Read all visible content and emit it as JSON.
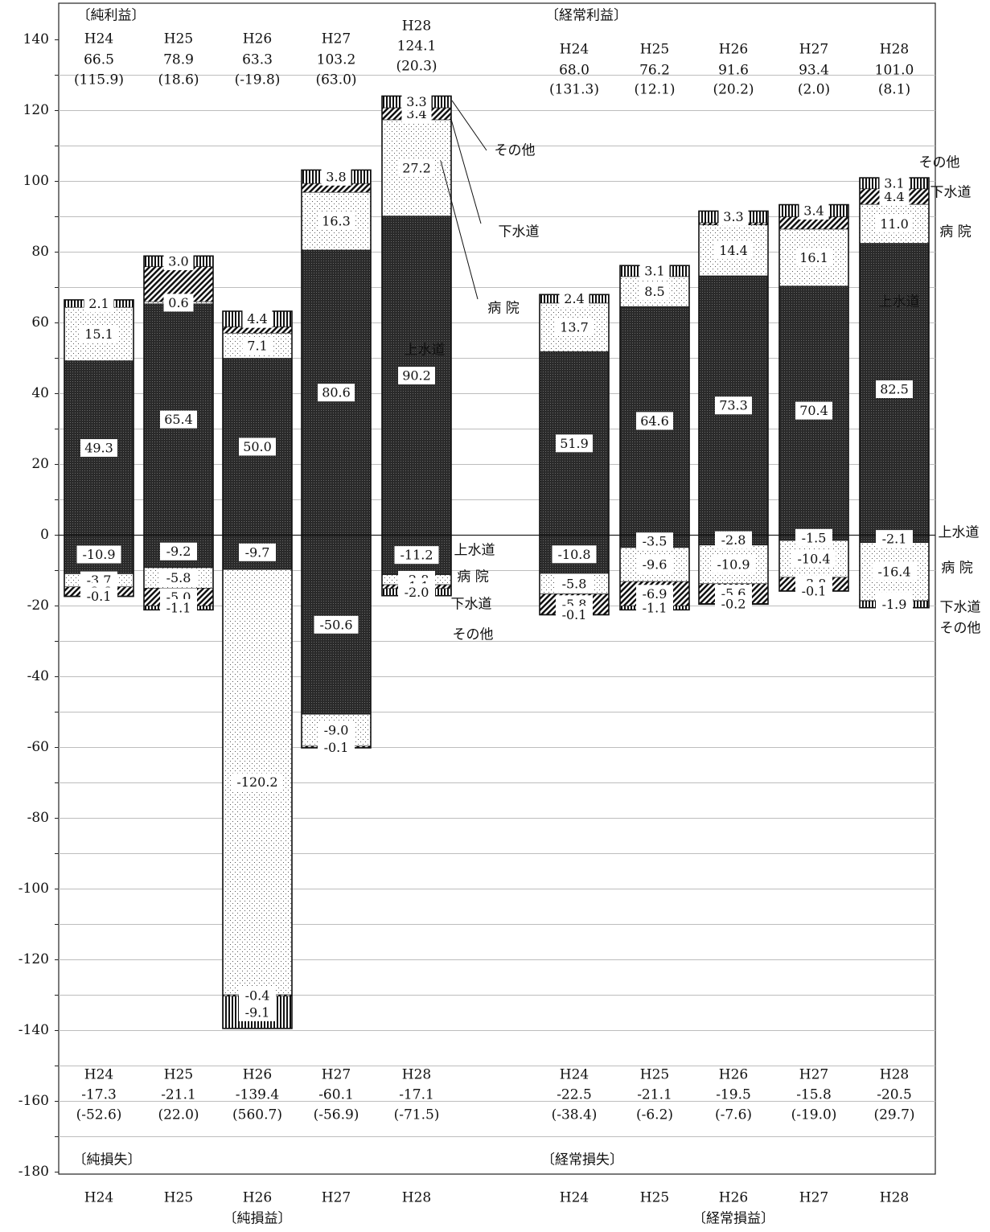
{
  "chart_data": {
    "type": "bar",
    "stacked": true,
    "ylim": [
      -180,
      140
    ],
    "yticks": [
      "140",
      "120",
      "100",
      "80",
      "60",
      "40",
      "20",
      "0",
      "-20",
      "-40",
      "-60",
      "-80",
      "-100",
      "-120",
      "-140",
      "-160",
      "-180"
    ],
    "grid": "horizontal",
    "xlabel_left": "〔純損益〕",
    "xlabel_right": "〔経常損益〕",
    "categories": [
      "H24",
      "H25",
      "H26",
      "H27",
      "H28"
    ],
    "component_labels": {
      "water": "上水道",
      "hospital": "病 院",
      "sewer": "下水道",
      "other": "その他"
    },
    "panels": [
      {
        "key": "net",
        "profit_heading": "〔純利益〕",
        "loss_heading": "〔純損失〕",
        "profit": {
          "totals": [
            "66.5",
            "78.9",
            "63.3",
            "103.2",
            "124.1"
          ],
          "changes": [
            "(115.9)",
            "(18.6)",
            "(-19.8)",
            "(63.0)",
            "(20.3)"
          ],
          "series": [
            {
              "name": "上水道",
              "values": [
                49.3,
                65.4,
                50.0,
                80.6,
                90.2
              ]
            },
            {
              "name": "病院",
              "values": [
                15.1,
                0.6,
                7.1,
                16.3,
                27.2
              ]
            },
            {
              "name": "下水道",
              "values": [
                0.0,
                9.9,
                1.8,
                2.5,
                3.4
              ]
            },
            {
              "name": "その他",
              "values": [
                2.1,
                3.0,
                4.4,
                3.8,
                3.3
              ]
            }
          ]
        },
        "loss": {
          "totals": [
            "-17.3",
            "-21.1",
            "-139.4",
            "-60.1",
            "-17.1"
          ],
          "changes": [
            "(-52.6)",
            "(22.0)",
            "(560.7)",
            "(-56.9)",
            "(-71.5)"
          ],
          "series": [
            {
              "name": "上水道",
              "values": [
                -10.9,
                -9.2,
                -9.7,
                -50.6,
                -11.2
              ]
            },
            {
              "name": "病院",
              "values": [
                -3.7,
                -5.8,
                -120.2,
                -9.0,
                -2.8
              ]
            },
            {
              "name": "下水道",
              "values": [
                -2.6,
                -5.0,
                -0.4,
                -0.4,
                -1.1
              ]
            },
            {
              "name": "その他",
              "values": [
                -0.1,
                -1.1,
                -9.1,
                -0.1,
                -2.0
              ]
            }
          ]
        }
      },
      {
        "key": "ordinary",
        "profit_heading": "〔経常利益〕",
        "loss_heading": "〔経常損失〕",
        "profit": {
          "totals": [
            "68.0",
            "76.2",
            "91.6",
            "93.4",
            "101.0"
          ],
          "changes": [
            "(131.3)",
            "(12.1)",
            "(20.2)",
            "(2.0)",
            "(8.1)"
          ],
          "series": [
            {
              "name": "上水道",
              "values": [
                51.9,
                64.6,
                73.3,
                70.4,
                82.5
              ]
            },
            {
              "name": "病院",
              "values": [
                13.7,
                8.5,
                14.4,
                16.1,
                11.0
              ]
            },
            {
              "name": "下水道",
              "values": [
                0.0,
                0.0,
                0.6,
                3.5,
                4.4
              ]
            },
            {
              "name": "その他",
              "values": [
                2.4,
                3.1,
                3.3,
                3.4,
                3.1
              ]
            }
          ]
        },
        "loss": {
          "totals": [
            "-22.5",
            "-21.1",
            "-19.5",
            "-15.8",
            "-20.5"
          ],
          "changes": [
            "(-38.4)",
            "(-6.2)",
            "(-7.6)",
            "(-19.0)",
            "(29.7)"
          ],
          "series": [
            {
              "name": "上水道",
              "values": [
                -10.8,
                -3.5,
                -2.8,
                -1.5,
                -2.1
              ]
            },
            {
              "name": "病院",
              "values": [
                -5.8,
                -9.6,
                -10.9,
                -10.4,
                -16.4
              ]
            },
            {
              "name": "下水道",
              "values": [
                -5.8,
                -6.9,
                -5.6,
                -3.8,
                -0.1
              ]
            },
            {
              "name": "その他",
              "values": [
                -0.1,
                -1.1,
                -0.2,
                -0.1,
                -1.9
              ]
            }
          ]
        }
      }
    ],
    "data_labels": {
      "net": {
        "profit": [
          [
            "49.3",
            "15.1",
            "",
            "2.1"
          ],
          [
            "65.4",
            "0.6",
            "",
            "3.0"
          ],
          [
            "50.0",
            "7.1",
            "",
            "4.4"
          ],
          [
            "80.6",
            "16.3",
            "",
            "3.8"
          ],
          [
            "90.2",
            "27.2",
            "3.4",
            "3.3"
          ]
        ],
        "loss": [
          [
            "-10.9",
            "-3.7",
            "-2.6",
            "-0.1"
          ],
          [
            "-9.2",
            "-5.8",
            "-5.0",
            "-1.1"
          ],
          [
            "-9.7",
            "-120.2",
            "-0.4",
            "-9.1"
          ],
          [
            "-50.6",
            "-9.0",
            "-0.4",
            "-0.1"
          ],
          [
            "-11.2",
            "-2.8",
            "-1.1",
            "-2.0"
          ]
        ]
      },
      "ordinary": {
        "profit": [
          [
            "51.9",
            "13.7",
            "",
            "2.4"
          ],
          [
            "64.6",
            "8.5",
            "",
            "3.1"
          ],
          [
            "73.3",
            "14.4",
            "",
            "3.3"
          ],
          [
            "70.4",
            "16.1",
            "",
            "3.4"
          ],
          [
            "82.5",
            "11.0",
            "4.4",
            "3.1"
          ]
        ],
        "loss": [
          [
            "-10.8",
            "-5.8",
            "-5.8",
            "-0.1"
          ],
          [
            "-3.5",
            "-9.6",
            "-6.9",
            "-1.1"
          ],
          [
            "-2.8",
            "-10.9",
            "-5.6",
            "-0.2"
          ],
          [
            "-1.5",
            "-10.4",
            "-3.8",
            "-0.1"
          ],
          [
            "-2.1",
            "-16.4",
            "-0.1",
            "-1.9"
          ]
        ]
      }
    }
  }
}
